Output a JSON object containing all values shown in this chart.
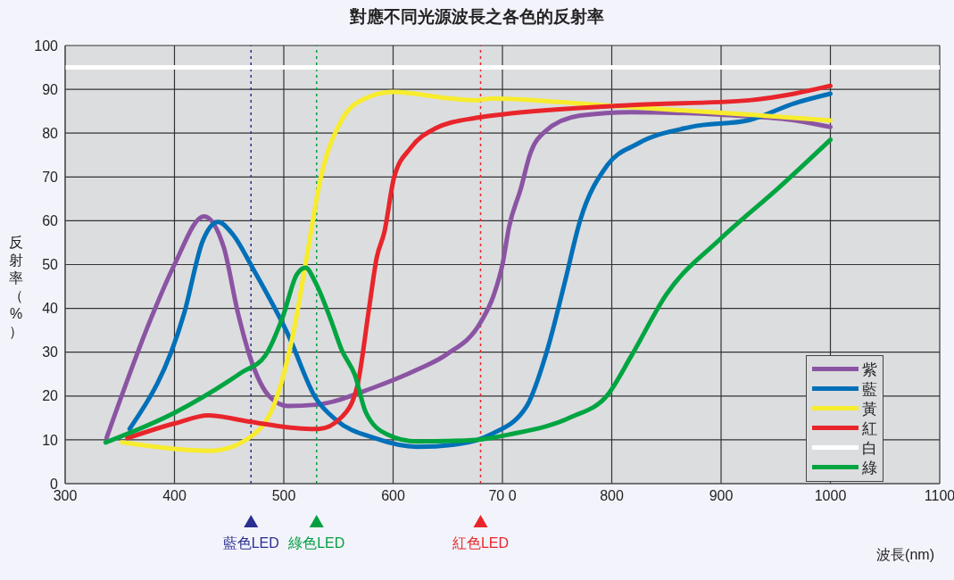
{
  "chart_data": {
    "type": "line",
    "title": "對應不同光源波長之各色的反射率",
    "xlabel": "波長(nm)",
    "ylabel": "反射率（%）",
    "xlim": [
      300,
      1100
    ],
    "xticks": [
      300,
      400,
      500,
      600,
      {
        "value": 700,
        "label": "70 0"
      },
      800,
      900,
      1000,
      1100
    ],
    "ylim": [
      0,
      100
    ],
    "yticks": [
      0,
      10,
      20,
      30,
      40,
      50,
      60,
      70,
      80,
      90,
      100
    ],
    "grid": true,
    "legend": "bottom right",
    "marker": "none",
    "line_style": "solid",
    "series": [
      {
        "name": "紫",
        "color": "#8b54a3",
        "x": [
          338,
          379,
          400,
          427,
          445,
          458,
          469,
          488,
          504,
          529,
          583,
          622,
          649,
          680,
          692,
          700,
          706,
          717,
          725,
          739,
          771,
          818,
          900,
          965,
          1000
        ],
        "values": [
          10.5,
          38,
          50,
          61,
          54,
          39,
          29,
          19.6,
          17.7,
          18,
          22,
          26,
          29.5,
          36.8,
          43,
          50,
          58.5,
          67.5,
          75,
          80.4,
          84,
          84.8,
          84.2,
          83,
          81.4
        ]
      },
      {
        "name": "藍",
        "color": "#0070b8",
        "x": [
          359,
          409,
          426,
          440,
          453,
          472,
          504,
          529,
          548,
          583,
          622,
          659,
          690,
          722,
          741,
          757,
          771,
          796,
          823,
          872,
          926,
          967,
          1000
        ],
        "values": [
          12.5,
          39,
          55.5,
          59.7,
          57,
          49,
          34,
          19.6,
          14.5,
          10.4,
          8.4,
          9,
          11.3,
          17.6,
          30.5,
          45.9,
          60,
          72.7,
          77.5,
          81.4,
          83,
          86.8,
          89
        ]
      },
      {
        "name": "黃",
        "color": "#f7ec2d",
        "x": [
          352,
          434,
          469,
          494,
          510,
          520,
          534,
          553,
          575,
          600,
          649,
          676,
          690,
          790,
          926,
          1000
        ],
        "values": [
          9.4,
          7.5,
          10.6,
          20,
          36,
          50.3,
          70,
          83,
          88,
          89.4,
          88,
          87.5,
          87.9,
          86.4,
          84.2,
          82.9
        ]
      },
      {
        "name": "紅",
        "color": "#e8252b",
        "x": [
          357,
          401,
          431,
          467,
          524,
          532,
          553,
          567,
          578,
          585,
          592,
          601,
          616,
          638,
          676,
          708,
          818,
          926,
          967,
          1000
        ],
        "values": [
          10.4,
          13.8,
          15.6,
          14.2,
          12.5,
          12.5,
          15.2,
          22,
          40,
          51.6,
          57.4,
          70,
          76.6,
          81,
          83.5,
          84.5,
          86.4,
          87.5,
          89,
          90.8
        ]
      },
      {
        "name": "白",
        "color": "#ffffff",
        "x": [
          300,
          1100
        ],
        "values": [
          95,
          95
        ]
      },
      {
        "name": "綠",
        "color": "#00a541",
        "x": [
          337,
          401,
          461,
          483,
          499,
          512,
          520,
          529,
          543,
          553,
          565,
          575,
          594,
          622,
          676,
          708,
          763,
          796,
          818,
          850,
          900,
          953,
          1000
        ],
        "values": [
          9.4,
          16.3,
          25.3,
          29.2,
          38,
          47.8,
          49.3,
          45.9,
          37.4,
          30.5,
          24.8,
          16.3,
          11.3,
          9.6,
          10,
          11.3,
          15.2,
          20.2,
          29.2,
          43.2,
          56,
          67.6,
          78.5
        ]
      }
    ],
    "ref_lines": [
      {
        "axis": "x",
        "value": 470,
        "label": "藍色LED",
        "color": "#2b2f8f",
        "line_style": "dotted"
      },
      {
        "axis": "x",
        "value": 530,
        "label": "綠色LED",
        "color": "#00a040",
        "line_style": "dotted"
      },
      {
        "axis": "x",
        "value": 680,
        "label": "紅色LED",
        "color": "#e8262a",
        "line_style": "dotted"
      }
    ]
  }
}
